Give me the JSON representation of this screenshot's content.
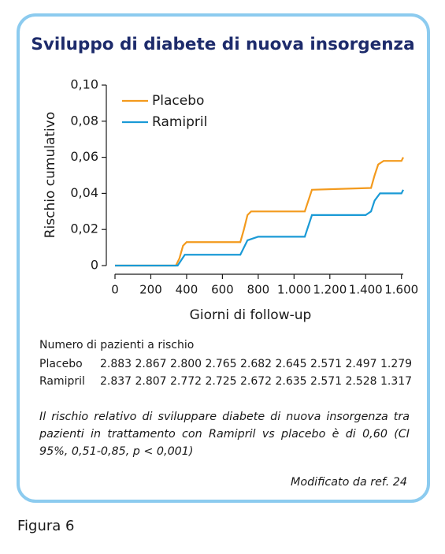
{
  "chart_data": {
    "type": "line",
    "title": "Sviluppo di diabete di nuova insorgenza",
    "xlabel": "Giorni di follow-up",
    "ylabel": "Rischio cumulativo",
    "xlim": [
      0,
      1610
    ],
    "ylim": [
      0,
      0.1
    ],
    "xticks": [
      0,
      200,
      400,
      600,
      800,
      {
        "value": 1000,
        "label": "1.000"
      },
      {
        "value": 1200,
        "label": "1.200"
      },
      {
        "value": 1400,
        "label": "1.400"
      },
      {
        "value": 1600,
        "label": "1.600"
      }
    ],
    "yticks": [
      0,
      {
        "value": 0.02,
        "label": "0,02"
      },
      {
        "value": 0.04,
        "label": "0,04"
      },
      {
        "value": 0.06,
        "label": "0,06"
      },
      {
        "value": 0.08,
        "label": "0,08"
      },
      {
        "value": 0.1,
        "label": "0,10"
      }
    ],
    "legend": "upper-left",
    "series": [
      {
        "name": "Placebo",
        "color": "#f39a1d",
        "x": [
          0,
          340,
          360,
          380,
          400,
          700,
          720,
          740,
          760,
          1060,
          1080,
          1100,
          1430,
          1450,
          1470,
          1500,
          1600,
          1610
        ],
        "values": [
          0,
          0,
          0.004,
          0.011,
          0.013,
          0.013,
          0.02,
          0.028,
          0.03,
          0.03,
          0.036,
          0.042,
          0.043,
          0.05,
          0.056,
          0.058,
          0.058,
          0.06
        ]
      },
      {
        "name": "Ramipril",
        "color": "#1a9ad6",
        "x": [
          0,
          350,
          370,
          390,
          700,
          720,
          740,
          800,
          1060,
          1080,
          1100,
          1400,
          1430,
          1450,
          1480,
          1600,
          1610
        ],
        "values": [
          0,
          0,
          0.003,
          0.006,
          0.006,
          0.01,
          0.014,
          0.016,
          0.016,
          0.022,
          0.028,
          0.028,
          0.03,
          0.036,
          0.04,
          0.04,
          0.042
        ]
      }
    ]
  },
  "table": {
    "title": "Numero di pazienti a rischio",
    "rows": [
      {
        "label": "Placebo",
        "values": [
          "2.883",
          "2.867",
          "2.800",
          "2.765",
          "2.682",
          "2.645",
          "2.571",
          "2.497",
          "1.279"
        ]
      },
      {
        "label": "Ramipril",
        "values": [
          "2.837",
          "2.807",
          "2.772",
          "2.725",
          "2.672",
          "2.635",
          "2.571",
          "2.528",
          "1.317"
        ]
      }
    ]
  },
  "note": "Il rischio relativo di sviluppare diabete di nuova insorgenza tra pazienti in trattamento con Ramipril vs placebo è di 0,60 (CI 95%, 0,51-0,85, p < 0,001)",
  "source": "Modificato da ref. 24",
  "figure_label": "Figura 6"
}
